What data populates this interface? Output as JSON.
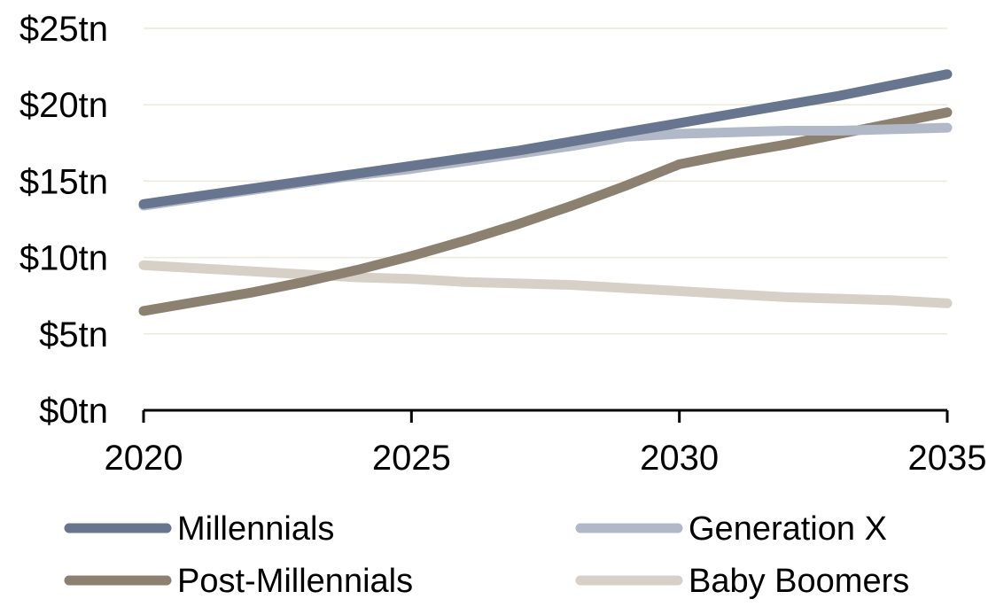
{
  "chart_data": {
    "type": "line",
    "title": "",
    "xlabel": "",
    "ylabel": "",
    "x": [
      2020,
      2021,
      2022,
      2023,
      2024,
      2025,
      2026,
      2027,
      2028,
      2029,
      2030,
      2031,
      2032,
      2033,
      2034,
      2035
    ],
    "xticks": [
      2020,
      2025,
      2030,
      2035
    ],
    "xtick_labels": [
      "2020",
      "2025",
      "2030",
      "2035"
    ],
    "ylim": [
      0,
      25
    ],
    "yticks": [
      0,
      5,
      10,
      15,
      20,
      25
    ],
    "ytick_labels": [
      "$0tn",
      "$5tn",
      "$10tn",
      "$15tn",
      "$20tn",
      "$25tn"
    ],
    "grid": true,
    "legend_position": "bottom",
    "series": [
      {
        "name": "Millennials",
        "color": "#68758f",
        "values": [
          13.5,
          14.0,
          14.5,
          15.0,
          15.5,
          16.0,
          16.5,
          17.0,
          17.6,
          18.2,
          18.8,
          19.4,
          20.0,
          20.6,
          21.3,
          22.0
        ]
      },
      {
        "name": "Generation X",
        "color": "#b1b8c8",
        "values": [
          13.4,
          13.9,
          14.4,
          14.9,
          15.4,
          15.8,
          16.3,
          16.8,
          17.3,
          17.9,
          18.1,
          18.2,
          18.3,
          18.3,
          18.4,
          18.5
        ]
      },
      {
        "name": "Post-Millennials",
        "color": "#8c8070",
        "values": [
          6.5,
          7.1,
          7.7,
          8.4,
          9.2,
          10.1,
          11.1,
          12.2,
          13.4,
          14.7,
          16.1,
          16.8,
          17.4,
          18.1,
          18.8,
          19.5
        ]
      },
      {
        "name": "Baby Boomers",
        "color": "#d6d0c7",
        "values": [
          9.5,
          9.3,
          9.1,
          8.9,
          8.7,
          8.6,
          8.4,
          8.3,
          8.2,
          8.0,
          7.8,
          7.6,
          7.4,
          7.3,
          7.2,
          7.0
        ]
      }
    ]
  }
}
